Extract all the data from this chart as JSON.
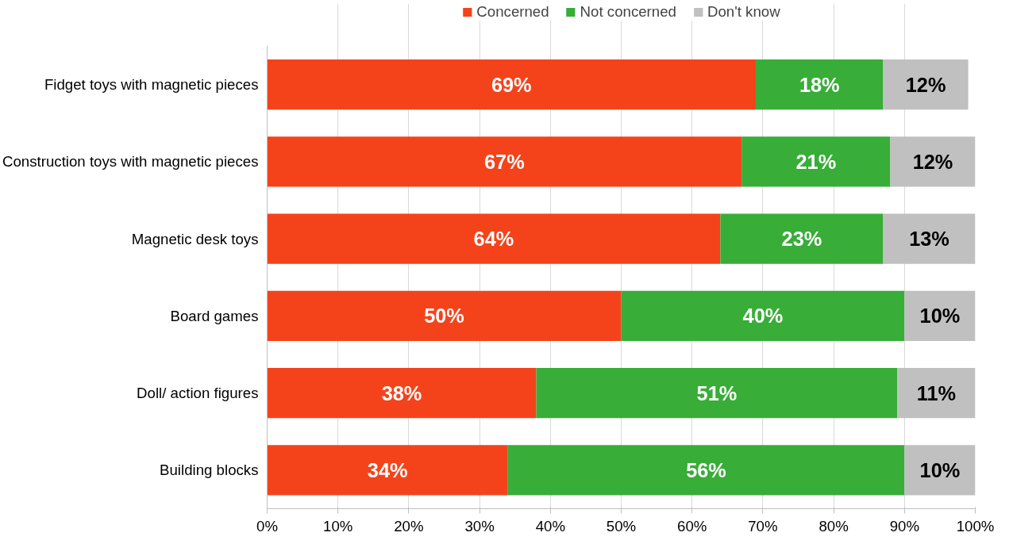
{
  "chart_data": {
    "type": "bar",
    "orientation": "horizontal",
    "stacked": true,
    "categories": [
      "Fidget toys with magnetic pieces",
      "Construction toys with magnetic pieces",
      "Magnetic desk toys",
      "Board games",
      "Doll/ action figures",
      "Building blocks"
    ],
    "series": [
      {
        "name": "Concerned",
        "color": "#f4431b",
        "values": [
          69,
          67,
          64,
          50,
          38,
          34
        ],
        "value_labels": [
          "69%",
          "67%",
          "64%",
          "50%",
          "38%",
          "34%"
        ]
      },
      {
        "name": "Not concerned",
        "color": "#38ad38",
        "values": [
          18,
          21,
          23,
          40,
          51,
          56
        ],
        "value_labels": [
          "18%",
          "21%",
          "23%",
          "40%",
          "51%",
          "56%"
        ]
      },
      {
        "name": "Don't know",
        "color": "#c0c0c0",
        "values": [
          12,
          12,
          13,
          10,
          11,
          10
        ],
        "value_labels": [
          "12%",
          "12%",
          "13%",
          "10%",
          "11%",
          "10%"
        ]
      }
    ],
    "xlim": [
      0,
      100
    ],
    "xticks": [
      {
        "value": 0,
        "label": "0%"
      },
      {
        "value": 10,
        "label": "10%"
      },
      {
        "value": 20,
        "label": "20%"
      },
      {
        "value": 30,
        "label": "30%"
      },
      {
        "value": 40,
        "label": "40%"
      },
      {
        "value": 50,
        "label": "50%"
      },
      {
        "value": 60,
        "label": "60%"
      },
      {
        "value": 70,
        "label": "70%"
      },
      {
        "value": 80,
        "label": "80%"
      },
      {
        "value": 90,
        "label": "90%"
      },
      {
        "value": 100,
        "label": "100%"
      }
    ],
    "grid": "x",
    "legend": "top"
  }
}
